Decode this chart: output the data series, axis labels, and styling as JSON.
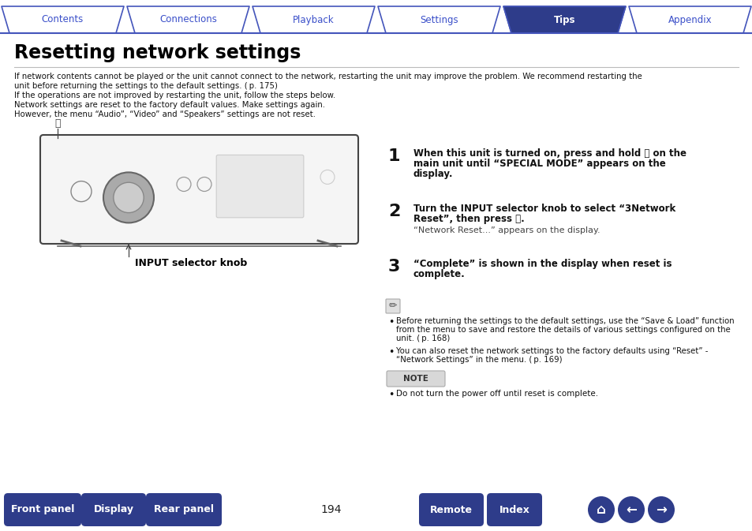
{
  "bg_color": "#ffffff",
  "tab_labels": [
    "Contents",
    "Connections",
    "Playback",
    "Settings",
    "Tips",
    "Appendix"
  ],
  "tab_active_index": 4,
  "tab_active_bg": "#2e3c8a",
  "tab_inactive_bg": "#ffffff",
  "tab_active_text_color": "#ffffff",
  "tab_inactive_text_color": "#3a4fc9",
  "tab_border_color": "#4455bb",
  "title": "Resetting network settings",
  "intro_lines": [
    "If network contents cannot be played or the unit cannot connect to the network, restarting the unit may improve the problem. We recommend restarting the",
    "unit before returning the settings to the default settings. ( p. 175)",
    "If the operations are not improved by restarting the unit, follow the steps below.",
    "Network settings are reset to the factory default values. Make settings again.",
    "However, the menu “Audio”, “Video” and “Speakers” settings are not reset."
  ],
  "step1_bold_line1": "When this unit is turned on, press and hold ⏽ on the",
  "step1_bold_line2": "main unit until “SPECIAL MODE” appears on the",
  "step1_bold_line3": "display.",
  "step2_bold_line1": "Turn the INPUT selector knob to select “3Network",
  "step2_bold_line2": "Reset”, then press ⏽.",
  "step2_normal": "“Network Reset...” appears on the display.",
  "step3_bold_line1": "“Complete” is shown in the display when reset is",
  "step3_bold_line2": "complete.",
  "note_b1_line1": "Before returning the settings to the default settings, use the “Save & Load” function",
  "note_b1_line2": "from the menu to save and restore the details of various settings configured on the",
  "note_b1_line3": "unit. ( p. 168)",
  "note_b2_line1": "You can also reset the network settings to the factory defaults using “Reset” -",
  "note_b2_line2": "“Network Settings” in the menu. ( p. 169)",
  "note_label": "NOTE",
  "note_text": "Do not turn the power off until reset is complete.",
  "input_label": "INPUT selector knob",
  "bottom_buttons": [
    "Front panel",
    "Display",
    "Rear panel",
    "Remote",
    "Index"
  ],
  "page_number": "194",
  "btn_color": "#2e3c8a",
  "btn_text_color": "#ffffff",
  "page_num_color": "#222222"
}
